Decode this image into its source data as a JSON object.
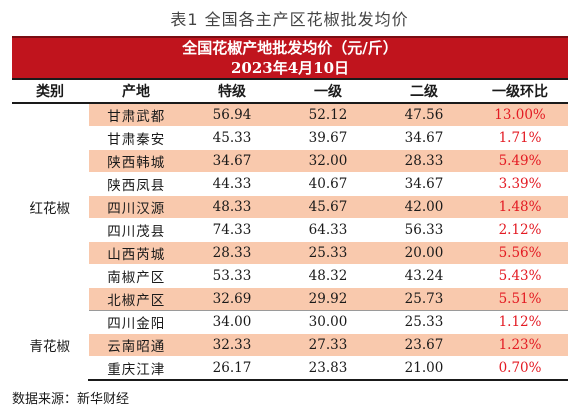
{
  "caption": "表1 全国各主产区花椒批发均价",
  "table": {
    "title_line1": "全国花椒产地批发均价（元/斤）",
    "title_line2": "2023年4月10日",
    "headers": [
      "类别",
      "产地",
      "特级",
      "一级",
      "二级",
      "一级环比"
    ],
    "groups": [
      {
        "category": "红花椒",
        "rows": [
          {
            "place": "甘肃武都",
            "special": "56.94",
            "first": "52.12",
            "second": "47.56",
            "ratio": "13.00%"
          },
          {
            "place": "甘肃秦安",
            "special": "45.33",
            "first": "39.67",
            "second": "34.67",
            "ratio": "1.71%"
          },
          {
            "place": "陕西韩城",
            "special": "34.67",
            "first": "32.00",
            "second": "28.33",
            "ratio": "5.49%"
          },
          {
            "place": "陕西凤县",
            "special": "44.33",
            "first": "40.67",
            "second": "34.67",
            "ratio": "3.39%"
          },
          {
            "place": "四川汉源",
            "special": "48.33",
            "first": "45.67",
            "second": "42.00",
            "ratio": "1.48%"
          },
          {
            "place": "四川茂县",
            "special": "74.33",
            "first": "64.33",
            "second": "56.33",
            "ratio": "2.12%"
          },
          {
            "place": "山西芮城",
            "special": "28.33",
            "first": "25.33",
            "second": "20.00",
            "ratio": "5.56%"
          },
          {
            "place": "南椒产区",
            "special": "53.33",
            "first": "48.32",
            "second": "43.24",
            "ratio": "5.43%"
          },
          {
            "place": "北椒产区",
            "special": "32.69",
            "first": "29.92",
            "second": "25.73",
            "ratio": "5.51%"
          }
        ]
      },
      {
        "category": "青花椒",
        "rows": [
          {
            "place": "四川金阳",
            "special": "34.00",
            "first": "30.00",
            "second": "25.33",
            "ratio": "1.12%"
          },
          {
            "place": "云南昭通",
            "special": "32.33",
            "first": "27.33",
            "second": "23.67",
            "ratio": "1.23%"
          },
          {
            "place": "重庆江津",
            "special": "26.17",
            "first": "23.83",
            "second": "21.00",
            "ratio": "0.70%"
          }
        ]
      }
    ]
  },
  "source_note": "数据来源：新华财经",
  "colors": {
    "title_bg": "#c0141d",
    "row_shade": "#f9c9ad",
    "ratio_text": "#e31b23"
  }
}
